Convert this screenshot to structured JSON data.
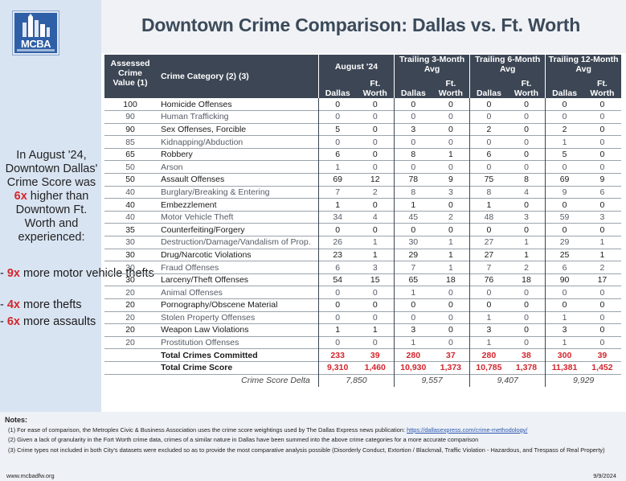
{
  "brand": {
    "logo_text": "MCBA"
  },
  "title": "Downtown Crime Comparison: Dallas vs. Ft. Worth",
  "summary": {
    "intro_before": "In August '24, Downtown Dallas' Crime Score was ",
    "intro_highlight": "6x",
    "intro_after": " higher than Downtown Ft. Worth and experienced:",
    "bullets": [
      {
        "dash": "- ",
        "highlight": "9x",
        "text": " more motor vehicle thefts"
      },
      {
        "dash": "- ",
        "highlight": "4x",
        "text": " more thefts"
      },
      {
        "dash": "- ",
        "highlight": "6x",
        "text": " more assaults"
      }
    ]
  },
  "table": {
    "headers": {
      "value": "Assessed Crime Value (1)",
      "category": "Crime Category (2) (3)",
      "periods": [
        "August '24",
        "Trailing 3-Month Avg",
        "Trailing 6-Month Avg",
        "Trailing 12-Month Avg"
      ],
      "city_a": "Dallas",
      "city_b": "Ft. Worth"
    },
    "rows": [
      {
        "value": "100",
        "category": "Homicide Offenses",
        "nums": [
          "0",
          "0",
          "0",
          "0",
          "0",
          "0",
          "0",
          "0"
        ]
      },
      {
        "value": "90",
        "category": "Human Trafficking",
        "nums": [
          "0",
          "0",
          "0",
          "0",
          "0",
          "0",
          "0",
          "0"
        ]
      },
      {
        "value": "90",
        "category": "Sex Offenses, Forcible",
        "nums": [
          "5",
          "0",
          "3",
          "0",
          "2",
          "0",
          "2",
          "0"
        ]
      },
      {
        "value": "85",
        "category": "Kidnapping/Abduction",
        "nums": [
          "0",
          "0",
          "0",
          "0",
          "0",
          "0",
          "1",
          "0"
        ]
      },
      {
        "value": "65",
        "category": "Robbery",
        "nums": [
          "6",
          "0",
          "8",
          "1",
          "6",
          "0",
          "5",
          "0"
        ]
      },
      {
        "value": "50",
        "category": "Arson",
        "nums": [
          "1",
          "0",
          "0",
          "0",
          "0",
          "0",
          "0",
          "0"
        ]
      },
      {
        "value": "50",
        "category": "Assault Offenses",
        "nums": [
          "69",
          "12",
          "78",
          "9",
          "75",
          "8",
          "69",
          "9"
        ]
      },
      {
        "value": "40",
        "category": "Burglary/Breaking & Entering",
        "nums": [
          "7",
          "2",
          "8",
          "3",
          "8",
          "4",
          "9",
          "6"
        ]
      },
      {
        "value": "40",
        "category": "Embezzlement",
        "nums": [
          "1",
          "0",
          "1",
          "0",
          "1",
          "0",
          "0",
          "0"
        ]
      },
      {
        "value": "40",
        "category": "Motor Vehicle Theft",
        "nums": [
          "34",
          "4",
          "45",
          "2",
          "48",
          "3",
          "59",
          "3"
        ]
      },
      {
        "value": "35",
        "category": "Counterfeiting/Forgery",
        "nums": [
          "0",
          "0",
          "0",
          "0",
          "0",
          "0",
          "0",
          "0"
        ]
      },
      {
        "value": "30",
        "category": "Destruction/Damage/Vandalism of Prop.",
        "nums": [
          "26",
          "1",
          "30",
          "1",
          "27",
          "1",
          "29",
          "1"
        ]
      },
      {
        "value": "30",
        "category": "Drug/Narcotic Violations",
        "nums": [
          "23",
          "1",
          "29",
          "1",
          "27",
          "1",
          "25",
          "1"
        ]
      },
      {
        "value": "30",
        "category": "Fraud Offenses",
        "nums": [
          "6",
          "3",
          "7",
          "1",
          "7",
          "2",
          "6",
          "2"
        ]
      },
      {
        "value": "30",
        "category": "Larceny/Theft Offenses",
        "nums": [
          "54",
          "15",
          "65",
          "18",
          "76",
          "18",
          "90",
          "17"
        ]
      },
      {
        "value": "20",
        "category": "Animal Offenses",
        "nums": [
          "0",
          "0",
          "1",
          "0",
          "0",
          "0",
          "0",
          "0"
        ]
      },
      {
        "value": "20",
        "category": "Pornography/Obscene Material",
        "nums": [
          "0",
          "0",
          "0",
          "0",
          "0",
          "0",
          "0",
          "0"
        ]
      },
      {
        "value": "20",
        "category": "Stolen Property Offenses",
        "nums": [
          "0",
          "0",
          "0",
          "0",
          "1",
          "0",
          "1",
          "0"
        ]
      },
      {
        "value": "20",
        "category": "Weapon Law Violations",
        "nums": [
          "1",
          "1",
          "3",
          "0",
          "3",
          "0",
          "3",
          "0"
        ]
      },
      {
        "value": "20",
        "category": "Prostitution Offenses",
        "nums": [
          "0",
          "0",
          "1",
          "0",
          "1",
          "0",
          "1",
          "0"
        ]
      }
    ],
    "totals": [
      {
        "label": "Total Crimes Committed",
        "nums": [
          "233",
          "39",
          "280",
          "37",
          "280",
          "38",
          "300",
          "39"
        ]
      },
      {
        "label": "Total Crime Score",
        "nums": [
          "9,310",
          "1,460",
          "10,930",
          "1,373",
          "10,785",
          "1,378",
          "11,381",
          "1,452"
        ]
      }
    ],
    "delta": {
      "label": "Crime Score Delta",
      "values": [
        "7,850",
        "9,557",
        "9,407",
        "9,929"
      ]
    }
  },
  "notes": {
    "title": "Notes:",
    "note1_text": "(1) For ease of comparison, the Metroplex Civic & Business Association uses the crime score weightings used by The Dallas Express news publication: ",
    "note1_link": "https://dallasexpress.com/crime-methodology/",
    "note2": "(2) Given a lack of granularity in the Fort Worth crime data, crimes of a similar nature in Dallas have been summed into the above crime categories for a more accurate comparison",
    "note3": "(3) Crime types not included in both City's datasets were excluded so as to provide the most comparative analysis possible (Disorderly Conduct, Extortion / Blackmail, Traffic Violation - Hazardous, and Trespass of Real Property)",
    "website": "www.mcbadfw.org",
    "date": "9/9/2024"
  },
  "colors": {
    "header_bg": "#3c4654",
    "highlight_red": "#d3262d",
    "side_panel": "#d9e4f2",
    "title_text": "#3b4a5a"
  }
}
